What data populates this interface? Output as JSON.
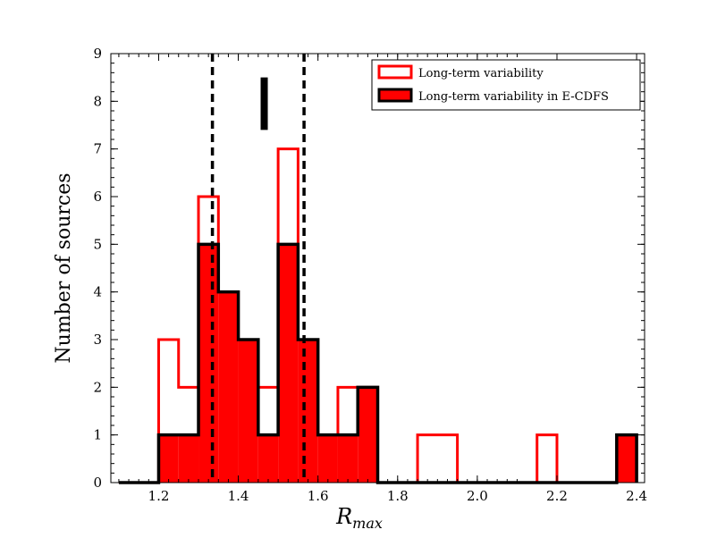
{
  "chart_data": {
    "type": "histogram",
    "xlabel": "R",
    "xlabel_sub": "max",
    "ylabel": "Number of sources",
    "xlim": [
      1.08,
      2.42
    ],
    "ylim": [
      0,
      9
    ],
    "xticks": [
      "1.2",
      "1.4",
      "1.6",
      "1.8",
      "2.0",
      "2.2",
      "2.4"
    ],
    "yticks": [
      "0",
      "1",
      "2",
      "3",
      "4",
      "5",
      "6",
      "7",
      "8",
      "9"
    ],
    "bin_edges": [
      1.1,
      1.15,
      1.2,
      1.25,
      1.3,
      1.35,
      1.4,
      1.45,
      1.5,
      1.55,
      1.6,
      1.65,
      1.7,
      1.75,
      1.8,
      1.85,
      1.9,
      1.95,
      2.0,
      2.05,
      2.1,
      2.15,
      2.2,
      2.25,
      2.3,
      2.35,
      2.4
    ],
    "series": [
      {
        "name": "Long-term variability",
        "style": "step-outline",
        "color": "#ff0000",
        "counts": [
          0,
          0,
          3,
          2,
          6,
          4,
          3,
          2,
          7,
          3,
          1,
          2,
          2,
          0,
          0,
          1,
          1,
          0,
          0,
          0,
          0,
          1,
          0,
          0,
          0,
          1
        ]
      },
      {
        "name": "Long-term variability in E-CDFS",
        "style": "filled",
        "color": "#ff0000",
        "edge_color": "#000000",
        "counts": [
          0,
          0,
          1,
          1,
          5,
          4,
          3,
          1,
          5,
          3,
          1,
          1,
          2,
          0,
          0,
          0,
          0,
          0,
          0,
          0,
          0,
          0,
          0,
          0,
          0,
          1
        ]
      }
    ],
    "vlines": [
      1.335,
      1.565
    ],
    "marker": {
      "x": 1.465,
      "y_from": 7.4,
      "y_to": 8.5
    },
    "legend": {
      "position": "top-right"
    }
  }
}
